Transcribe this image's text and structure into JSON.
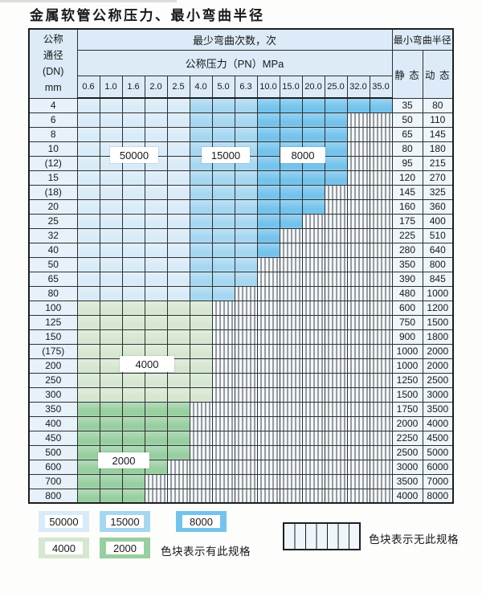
{
  "title": "金属软管公称压力、最小弯曲半径",
  "colors": {
    "c50000": "#d8ebf8",
    "c15000": "#a6d7f1",
    "c8000": "#74c3ec",
    "c4000": "#d6e7d1",
    "c2000": "#98cfa0",
    "header_bg": "#dcebf7",
    "dn_col_bg": "#e7f1fa",
    "value_col_bg": "#eef5fb",
    "striped_bg": "#f3f8fc",
    "grid": "#2c3033"
  },
  "table": {
    "header": {
      "dn_lines": [
        "公称",
        "通径",
        "(DN)",
        "mm"
      ],
      "cycles_title": "最少弯曲次数，次",
      "radius_title": "最小弯曲半径",
      "pressure_title": "公称压力（PN）MPa",
      "static_label": "静 态",
      "dynamic_label": "动 态",
      "pressures": [
        "0.6",
        "1.0",
        "1.6",
        "2.0",
        "2.5",
        "4.0",
        "5.0",
        "6.3",
        "10.0",
        "15.0",
        "20.0",
        "25.0",
        "32.0",
        "35.0"
      ]
    },
    "blue_ranges": {
      "c50000": [
        0,
        4
      ],
      "c15000": [
        5,
        7
      ],
      "c8000": [
        8,
        13
      ]
    },
    "rows": [
      {
        "dn": "4",
        "colored": 14,
        "palette": "blue",
        "static": "35",
        "dynamic": "80"
      },
      {
        "dn": "6",
        "colored": 12,
        "palette": "blue",
        "static": "50",
        "dynamic": "110"
      },
      {
        "dn": "8",
        "colored": 12,
        "palette": "blue",
        "static": "65",
        "dynamic": "145"
      },
      {
        "dn": "10",
        "colored": 12,
        "palette": "blue",
        "static": "80",
        "dynamic": "180"
      },
      {
        "dn": "(12)",
        "colored": 12,
        "palette": "blue",
        "static": "95",
        "dynamic": "215"
      },
      {
        "dn": "15",
        "colored": 12,
        "palette": "blue",
        "static": "120",
        "dynamic": "270"
      },
      {
        "dn": "(18)",
        "colored": 11,
        "palette": "blue",
        "static": "145",
        "dynamic": "325"
      },
      {
        "dn": "20",
        "colored": 11,
        "palette": "blue",
        "static": "160",
        "dynamic": "360"
      },
      {
        "dn": "25",
        "colored": 10,
        "palette": "blue",
        "static": "175",
        "dynamic": "400"
      },
      {
        "dn": "32",
        "colored": 9,
        "palette": "blue",
        "static": "225",
        "dynamic": "510"
      },
      {
        "dn": "40",
        "colored": 9,
        "palette": "blue",
        "static": "280",
        "dynamic": "640"
      },
      {
        "dn": "50",
        "colored": 8,
        "palette": "blue",
        "static": "350",
        "dynamic": "800"
      },
      {
        "dn": "65",
        "colored": 8,
        "palette": "blue",
        "static": "390",
        "dynamic": "845"
      },
      {
        "dn": "80",
        "colored": 7,
        "palette": "blue",
        "static": "480",
        "dynamic": "1000"
      },
      {
        "dn": "100",
        "colored": 6,
        "palette": "c4000",
        "static": "600",
        "dynamic": "1200"
      },
      {
        "dn": "125",
        "colored": 6,
        "palette": "c4000",
        "static": "750",
        "dynamic": "1500"
      },
      {
        "dn": "150",
        "colored": 6,
        "palette": "c4000",
        "static": "900",
        "dynamic": "1800"
      },
      {
        "dn": "(175)",
        "colored": 6,
        "palette": "c4000",
        "static": "1000",
        "dynamic": "2000"
      },
      {
        "dn": "200",
        "colored": 6,
        "palette": "c4000",
        "static": "1000",
        "dynamic": "2000"
      },
      {
        "dn": "250",
        "colored": 6,
        "palette": "c4000",
        "static": "1250",
        "dynamic": "2500"
      },
      {
        "dn": "300",
        "colored": 6,
        "palette": "c4000",
        "static": "1500",
        "dynamic": "3000"
      },
      {
        "dn": "350",
        "colored": 5,
        "palette": "c2000",
        "static": "1750",
        "dynamic": "3500"
      },
      {
        "dn": "400",
        "colored": 5,
        "palette": "c2000",
        "static": "2000",
        "dynamic": "4000"
      },
      {
        "dn": "450",
        "colored": 5,
        "palette": "c2000",
        "static": "2250",
        "dynamic": "4500"
      },
      {
        "dn": "500",
        "colored": 5,
        "palette": "c2000",
        "static": "2500",
        "dynamic": "5000"
      },
      {
        "dn": "600",
        "colored": 4,
        "palette": "c2000",
        "static": "3000",
        "dynamic": "6000"
      },
      {
        "dn": "700",
        "colored": 3,
        "palette": "c2000",
        "static": "3500",
        "dynamic": "7000"
      },
      {
        "dn": "800",
        "colored": 3,
        "palette": "c2000",
        "static": "4000",
        "dynamic": "8000"
      }
    ]
  },
  "overlays": {
    "l50000": "50000",
    "l15000": "15000",
    "l8000": "8000",
    "l4000": "4000",
    "l2000": "2000"
  },
  "legend": {
    "present_blocks": [
      {
        "value": "50000",
        "color_key": "c50000"
      },
      {
        "value": "15000",
        "color_key": "c15000"
      },
      {
        "value": "8000",
        "color_key": "c8000"
      },
      {
        "value": "4000",
        "color_key": "c4000"
      },
      {
        "value": "2000",
        "color_key": "c2000"
      }
    ],
    "present_text": "色块表示有此规格",
    "absent_text": "色块表示无此规格"
  }
}
